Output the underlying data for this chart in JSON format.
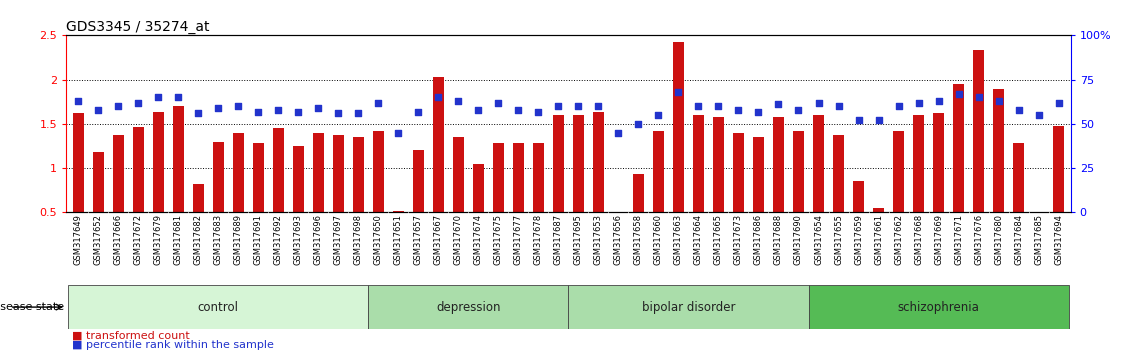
{
  "title": "GDS3345 / 35274_at",
  "samples": [
    "GSM317649",
    "GSM317652",
    "GSM317666",
    "GSM317672",
    "GSM317679",
    "GSM317681",
    "GSM317682",
    "GSM317683",
    "GSM317689",
    "GSM317691",
    "GSM317692",
    "GSM317693",
    "GSM317696",
    "GSM317697",
    "GSM317698",
    "GSM317650",
    "GSM317651",
    "GSM317657",
    "GSM317667",
    "GSM317670",
    "GSM317674",
    "GSM317675",
    "GSM317677",
    "GSM317678",
    "GSM317687",
    "GSM317695",
    "GSM317653",
    "GSM317656",
    "GSM317658",
    "GSM317660",
    "GSM317663",
    "GSM317664",
    "GSM317665",
    "GSM317673",
    "GSM317686",
    "GSM317688",
    "GSM317690",
    "GSM317654",
    "GSM317655",
    "GSM317659",
    "GSM317661",
    "GSM317662",
    "GSM317668",
    "GSM317669",
    "GSM317671",
    "GSM317676",
    "GSM317680",
    "GSM317684",
    "GSM317685",
    "GSM317694"
  ],
  "bar_values": [
    1.62,
    1.18,
    1.38,
    1.46,
    1.63,
    1.7,
    0.82,
    1.3,
    1.4,
    1.28,
    1.45,
    1.25,
    1.4,
    1.37,
    1.35,
    1.42,
    0.52,
    1.2,
    2.03,
    1.35,
    1.05,
    1.28,
    1.28,
    1.28,
    1.6,
    1.6,
    1.63,
    0.42,
    0.93,
    1.42,
    2.43,
    1.6,
    1.58,
    1.4,
    1.35,
    1.58,
    1.42,
    1.6,
    1.38,
    0.85,
    0.55,
    1.42,
    1.6,
    1.62,
    1.95,
    2.33,
    1.9,
    1.28,
    0.48,
    1.48
  ],
  "percentile_values": [
    63,
    58,
    60,
    62,
    65,
    65,
    56,
    59,
    60,
    57,
    58,
    57,
    59,
    56,
    56,
    62,
    45,
    57,
    65,
    63,
    58,
    62,
    58,
    57,
    60,
    60,
    60,
    45,
    50,
    55,
    68,
    60,
    60,
    58,
    57,
    61,
    58,
    62,
    60,
    52,
    52,
    60,
    62,
    63,
    67,
    65,
    63,
    58,
    55,
    62
  ],
  "groups": [
    {
      "label": "control",
      "start": 0,
      "end": 15,
      "facecolor": "#d6f5d6"
    },
    {
      "label": "depression",
      "start": 15,
      "end": 25,
      "facecolor": "#aaddaa"
    },
    {
      "label": "bipolar disorder",
      "start": 25,
      "end": 37,
      "facecolor": "#aaddaa"
    },
    {
      "label": "schizophrenia",
      "start": 37,
      "end": 50,
      "facecolor": "#55bb55"
    }
  ],
  "bar_color": "#cc1111",
  "dot_color": "#2233cc",
  "ylim_left": [
    0.5,
    2.5
  ],
  "left_yticks": [
    0.5,
    1.0,
    1.5,
    2.0,
    2.5
  ],
  "left_yticklabels": [
    "0.5",
    "1",
    "1.5",
    "2",
    "2.5"
  ],
  "right_yticks": [
    0,
    25,
    50,
    75,
    100
  ],
  "right_yticklabels": [
    "0",
    "25",
    "50",
    "75",
    "100%"
  ],
  "grid_values": [
    1.0,
    1.5,
    2.0
  ],
  "legend_items": [
    {
      "label": "transformed count",
      "color": "#cc1111"
    },
    {
      "label": "percentile rank within the sample",
      "color": "#2233cc"
    }
  ]
}
